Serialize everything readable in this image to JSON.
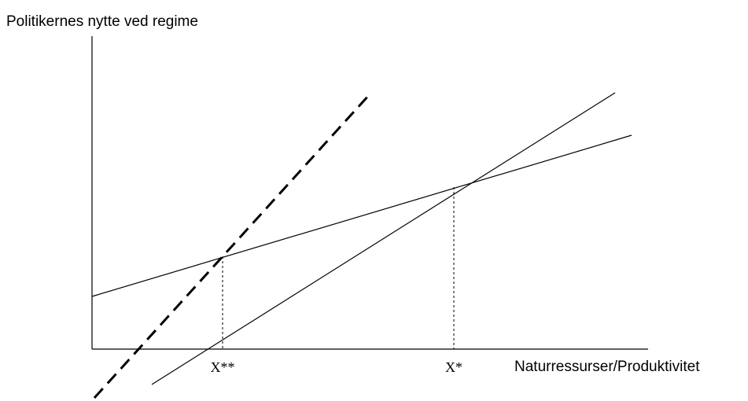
{
  "diagram": {
    "y_axis_label": "Politikernes nytte ved regime",
    "x_axis_label": "Naturressurser/Produktivitet",
    "markers": [
      {
        "id": "x-double-star",
        "label": "X**"
      },
      {
        "id": "x-star",
        "label": "X*"
      }
    ],
    "lines": [
      {
        "id": "shallow-line",
        "style": "solid"
      },
      {
        "id": "steep-line",
        "style": "solid"
      },
      {
        "id": "dashed-line",
        "style": "dashed"
      }
    ],
    "colors": {
      "lines": "#000000",
      "background": "#ffffff"
    }
  }
}
